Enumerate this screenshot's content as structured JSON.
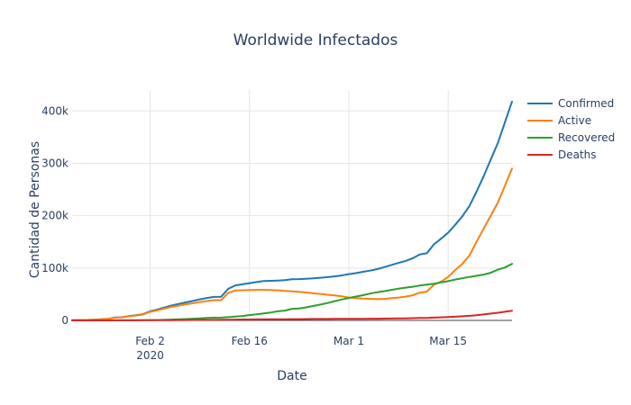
{
  "chart_data": {
    "type": "line",
    "title": "Worldwide Infectados",
    "xlabel": "Date",
    "ylabel": "Cantidad de Personas",
    "x_range": [
      "2020-01-22",
      "2020-03-24"
    ],
    "ylim": [
      0,
      440000
    ],
    "grid": true,
    "legend_position": "right",
    "x_ticks": [
      {
        "date": "2020-02-02",
        "label": "Feb 2",
        "sublabel": "2020"
      },
      {
        "date": "2020-02-16",
        "label": "Feb 16",
        "sublabel": ""
      },
      {
        "date": "2020-03-01",
        "label": "Mar 1",
        "sublabel": ""
      },
      {
        "date": "2020-03-15",
        "label": "Mar 15",
        "sublabel": ""
      }
    ],
    "y_ticks": [
      {
        "value": 0,
        "label": "0"
      },
      {
        "value": 100000,
        "label": "100k"
      },
      {
        "value": 200000,
        "label": "200k"
      },
      {
        "value": 300000,
        "label": "300k"
      },
      {
        "value": 400000,
        "label": "400k"
      }
    ],
    "dates": [
      "2020-01-22",
      "2020-01-23",
      "2020-01-24",
      "2020-01-25",
      "2020-01-26",
      "2020-01-27",
      "2020-01-28",
      "2020-01-29",
      "2020-01-30",
      "2020-01-31",
      "2020-02-01",
      "2020-02-02",
      "2020-02-03",
      "2020-02-04",
      "2020-02-05",
      "2020-02-06",
      "2020-02-07",
      "2020-02-08",
      "2020-02-09",
      "2020-02-10",
      "2020-02-11",
      "2020-02-12",
      "2020-02-13",
      "2020-02-14",
      "2020-02-15",
      "2020-02-16",
      "2020-02-17",
      "2020-02-18",
      "2020-02-19",
      "2020-02-20",
      "2020-02-21",
      "2020-02-22",
      "2020-02-23",
      "2020-02-24",
      "2020-02-25",
      "2020-02-26",
      "2020-02-27",
      "2020-02-28",
      "2020-02-29",
      "2020-03-01",
      "2020-03-02",
      "2020-03-03",
      "2020-03-04",
      "2020-03-05",
      "2020-03-06",
      "2020-03-07",
      "2020-03-08",
      "2020-03-09",
      "2020-03-10",
      "2020-03-11",
      "2020-03-12",
      "2020-03-13",
      "2020-03-14",
      "2020-03-15",
      "2020-03-16",
      "2020-03-17",
      "2020-03-18",
      "2020-03-19",
      "2020-03-20",
      "2020-03-21",
      "2020-03-22",
      "2020-03-23",
      "2020-03-24"
    ],
    "series": [
      {
        "name": "Confirmed",
        "color": "#1f77b4",
        "values": [
          600,
          700,
          900,
          1300,
          2000,
          2900,
          5500,
          6100,
          8200,
          9800,
          11900,
          17400,
          20600,
          24500,
          28300,
          31500,
          34400,
          37100,
          40200,
          42800,
          44800,
          45200,
          60400,
          66900,
          69000,
          71200,
          73300,
          75200,
          75700,
          76200,
          76800,
          78600,
          78900,
          79600,
          80400,
          81400,
          82700,
          84100,
          86000,
          88400,
          90300,
          92800,
          95100,
          97900,
          101800,
          105800,
          109800,
          113600,
          118600,
          125900,
          128300,
          145200,
          156100,
          167500,
          182600,
          198800,
          218600,
          245700,
          275100,
          307200,
          338800,
          378200,
          417900
        ]
      },
      {
        "name": "Active",
        "color": "#ff7f0e",
        "values": [
          500,
          600,
          800,
          1200,
          1900,
          2700,
          5300,
          5800,
          7700,
          9300,
          11200,
          16400,
          19200,
          22600,
          25800,
          28200,
          30800,
          32700,
          34900,
          36900,
          38600,
          38700,
          52400,
          57000,
          57500,
          57900,
          58200,
          58300,
          58100,
          57400,
          56300,
          55500,
          54400,
          53200,
          51800,
          50500,
          49000,
          47600,
          45900,
          43800,
          42600,
          41800,
          41300,
          40600,
          41000,
          42200,
          43700,
          45300,
          48000,
          53000,
          55000,
          68200,
          74000,
          83000,
          96000,
          108000,
          124000,
          150000,
          175000,
          200000,
          225000,
          257000,
          290000
        ]
      },
      {
        "name": "Recovered",
        "color": "#2ca02c",
        "values": [
          30,
          30,
          40,
          40,
          50,
          60,
          100,
          130,
          140,
          220,
          280,
          500,
          650,
          1000,
          1500,
          2000,
          2600,
          3200,
          4000,
          4700,
          5200,
          5400,
          6200,
          7300,
          8500,
          10100,
          11700,
          13200,
          15100,
          17300,
          18800,
          22100,
          22900,
          24900,
          27600,
          30300,
          33200,
          36700,
          39800,
          42700,
          45600,
          48200,
          51200,
          53800,
          55800,
          58300,
          60600,
          62500,
          64200,
          66500,
          68300,
          70100,
          72500,
          75000,
          78000,
          80500,
          83000,
          85000,
          87500,
          91000,
          97000,
          101000,
          108000
        ]
      },
      {
        "name": "Deaths",
        "color": "#d62728",
        "values": [
          17,
          18,
          26,
          42,
          56,
          82,
          131,
          133,
          171,
          213,
          259,
          362,
          426,
          492,
          564,
          634,
          719,
          806,
          906,
          1013,
          1113,
          1118,
          1371,
          1523,
          1666,
          1770,
          1868,
          2007,
          2122,
          2247,
          2251,
          2458,
          2469,
          2629,
          2708,
          2770,
          2814,
          2872,
          2941,
          2996,
          3085,
          3160,
          3254,
          3348,
          3460,
          3558,
          3802,
          3988,
          4262,
          4615,
          4720,
          5404,
          5819,
          6440,
          7126,
          7905,
          8733,
          9867,
          11299,
          13015,
          14623,
          16497,
          18615
        ]
      }
    ]
  }
}
